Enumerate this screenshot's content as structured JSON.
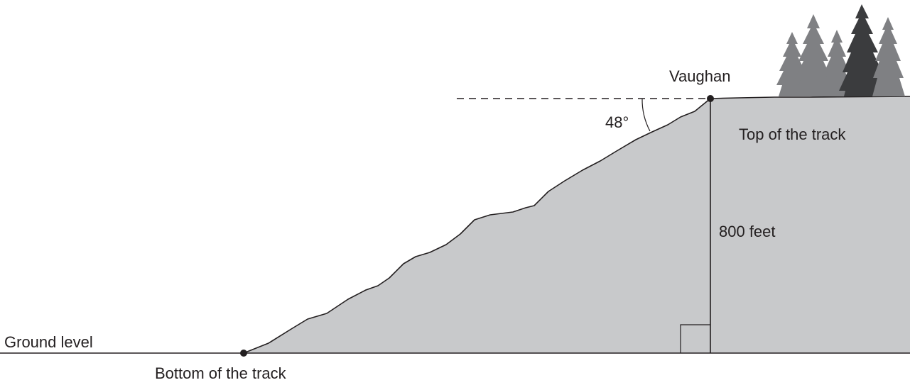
{
  "labels": {
    "point_top": "Vaughan",
    "angle": "48°",
    "top_of_track": "Top of the track",
    "height": "800 feet",
    "ground_level": "Ground level",
    "bottom_of_track": "Bottom of the track"
  },
  "colors": {
    "hill_fill": "#c8c9cb",
    "line": "#231f20",
    "tree_light": "#7f8083",
    "tree_dark": "#3b3c3e"
  },
  "icons": {
    "trees": "pine-trees-icon"
  },
  "measurements": {
    "angle_of_depression_deg": 48,
    "height_ft": 800
  }
}
